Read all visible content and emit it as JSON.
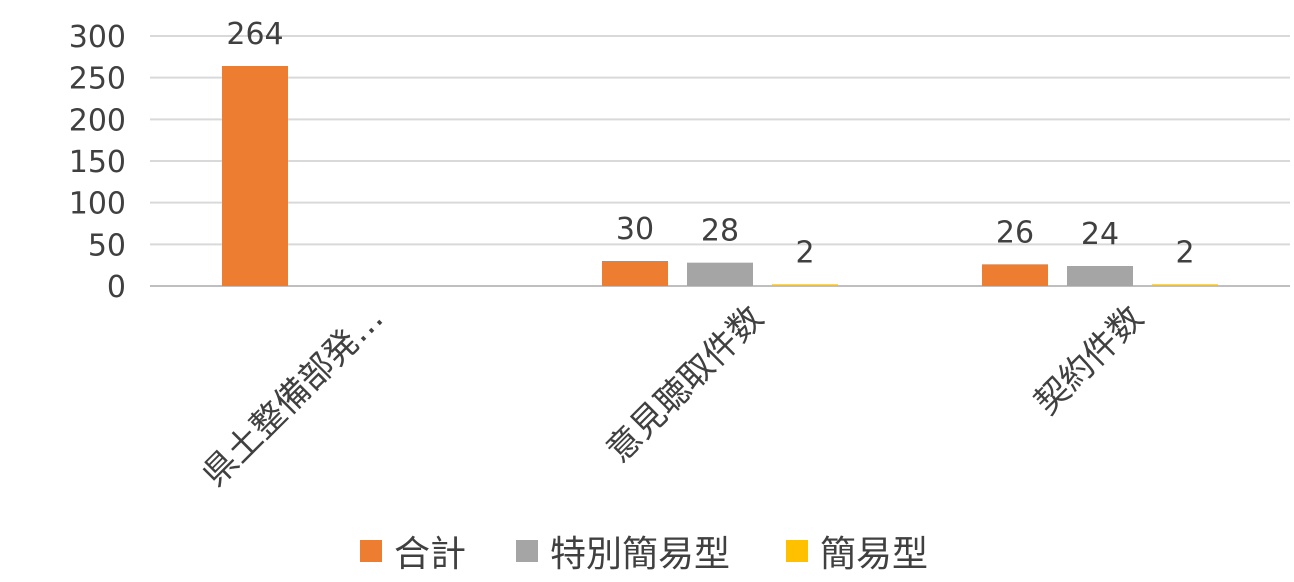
{
  "chart_data": {
    "type": "bar",
    "title": "",
    "xlabel": "",
    "ylabel": "",
    "ylim": [
      0,
      300
    ],
    "yticks": [
      0,
      50,
      100,
      150,
      200,
      250,
      300
    ],
    "grid": true,
    "legend_position": "bottom",
    "categories": [
      "県土整備部発…",
      "意見聴取件数",
      "契約件数"
    ],
    "series": [
      {
        "name": "合計",
        "color": "#ED7D31",
        "values": [
          264,
          30,
          26
        ],
        "labels": [
          "264",
          "30",
          "26"
        ]
      },
      {
        "name": "特別簡易型",
        "color": "#A5A5A5",
        "values": [
          null,
          28,
          24
        ],
        "labels": [
          "",
          "28",
          "24"
        ]
      },
      {
        "name": "簡易型",
        "color": "#FFC000",
        "values": [
          null,
          2,
          2
        ],
        "labels": [
          "",
          "2",
          "2"
        ]
      }
    ]
  }
}
